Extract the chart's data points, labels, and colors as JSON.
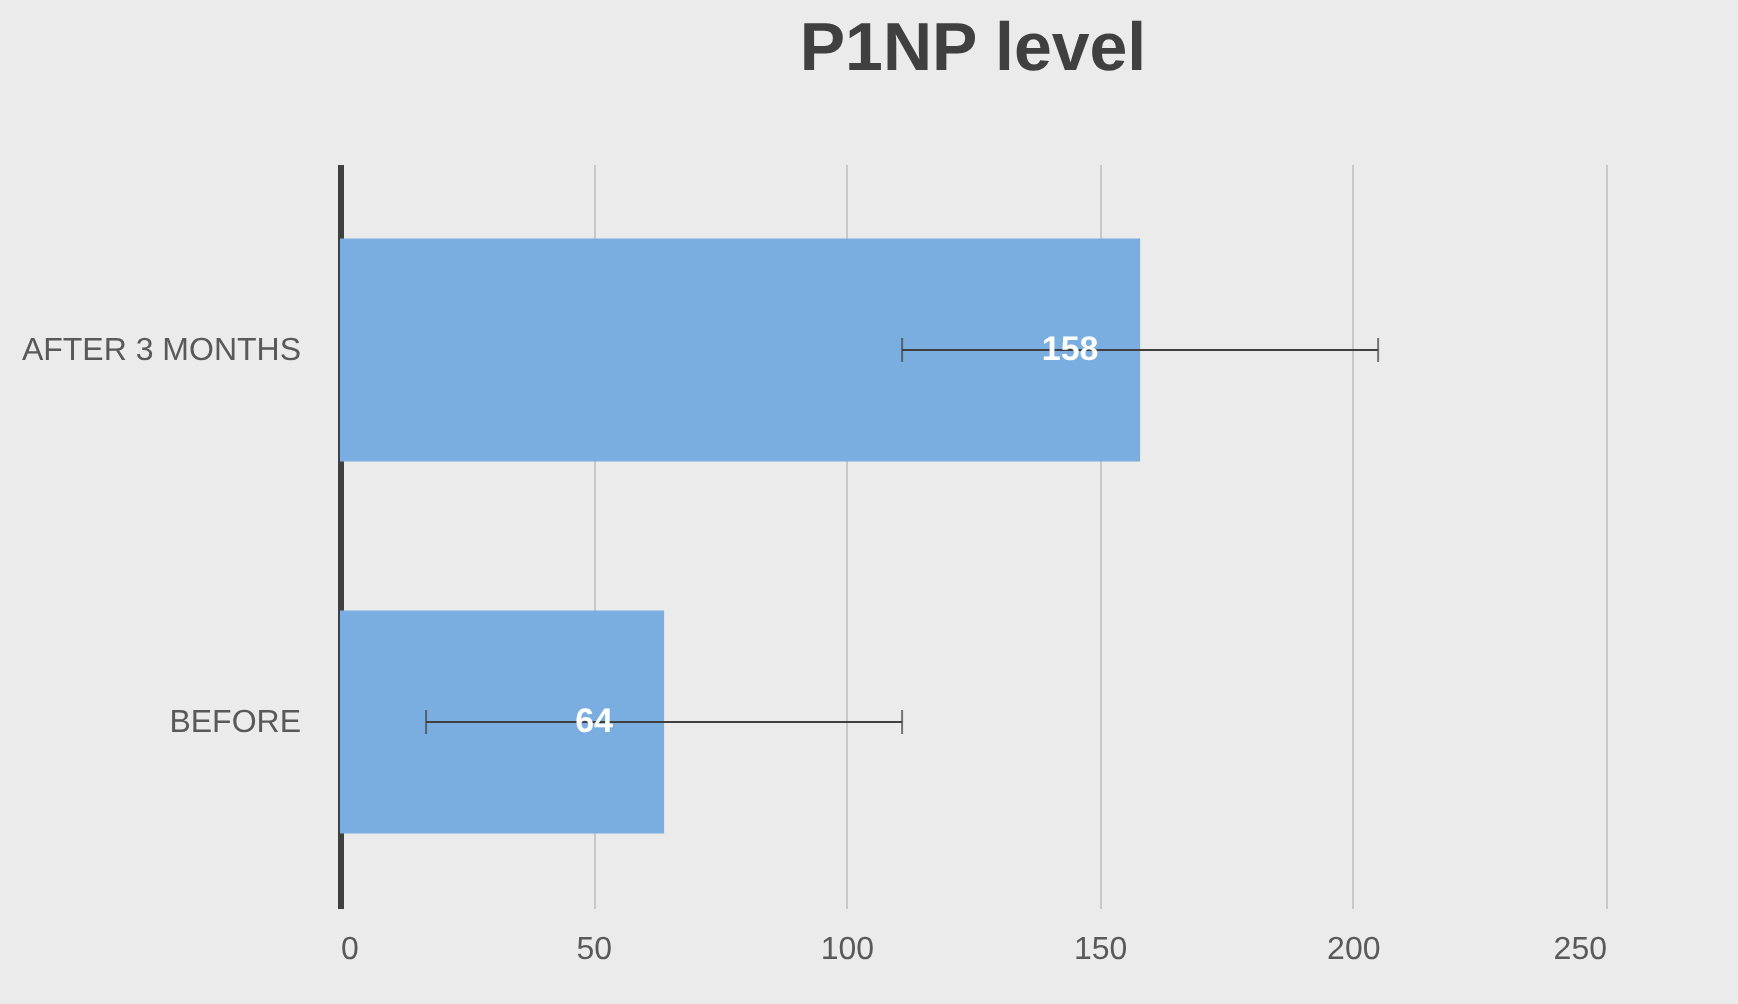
{
  "chart_data": {
    "type": "bar",
    "title": "P1NP level",
    "orientation": "horizontal",
    "categories": [
      "AFTER 3 MONTHS",
      "BEFORE"
    ],
    "values": [
      158,
      64
    ],
    "errors": [
      47,
      47
    ],
    "color": "#7aaee0",
    "data_labels": true,
    "xlim": [
      0,
      250
    ],
    "xticks": [
      0,
      50,
      100,
      150,
      200,
      250
    ],
    "grid": "x"
  }
}
